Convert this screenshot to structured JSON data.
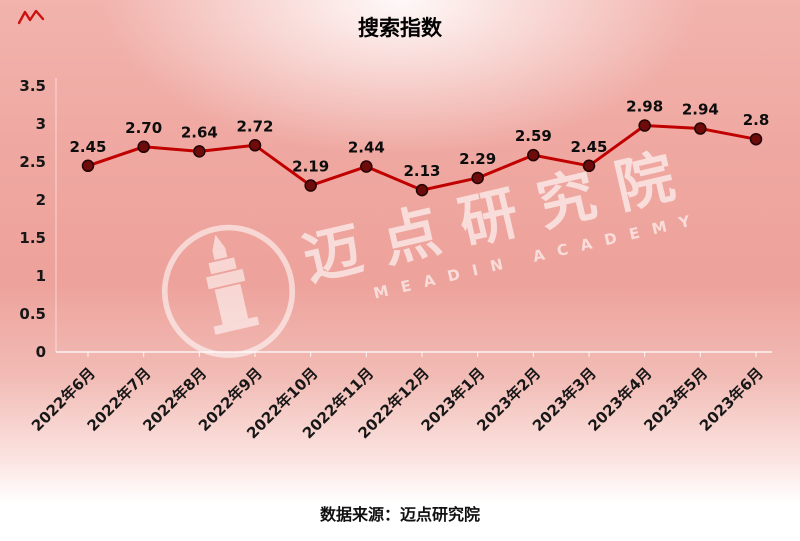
{
  "title": "搜索指数",
  "footer": {
    "source": "数据来源：迈点研究院"
  },
  "watermark": {
    "cn": "迈点研究院",
    "en": "MEADIN ACADEMY"
  },
  "colors": {
    "line": "#c00000",
    "marker_fill": "#6e0b0b",
    "marker_stroke": "#240303",
    "axis": "rgba(255,255,255,0.85)",
    "corner_mark": "#cc1111"
  },
  "chart_data": {
    "type": "line",
    "title": "搜索指数",
    "categories": [
      "2022年6月",
      "2022年7月",
      "2022年8月",
      "2022年9月",
      "2022年10月",
      "2022年11月",
      "2022年12月",
      "2023年1月",
      "2023年2月",
      "2023年3月",
      "2023年4月",
      "2023年5月",
      "2023年6月"
    ],
    "values": [
      2.45,
      2.7,
      2.64,
      2.72,
      2.19,
      2.44,
      2.13,
      2.29,
      2.59,
      2.45,
      2.98,
      2.94,
      2.8
    ],
    "labels": [
      "2.45",
      "2.70",
      "2.64",
      "2.72",
      "2.19",
      "2.44",
      "2.13",
      "2.29",
      "2.59",
      "2.45",
      "2.98",
      "2.94",
      "2.8"
    ],
    "xlabel": "",
    "ylabel": "",
    "ylim": [
      0,
      3.5
    ],
    "y_ticks": [
      0,
      0.5,
      1,
      1.5,
      2,
      2.5,
      3,
      3.5
    ],
    "grid": false,
    "legend": "none"
  }
}
